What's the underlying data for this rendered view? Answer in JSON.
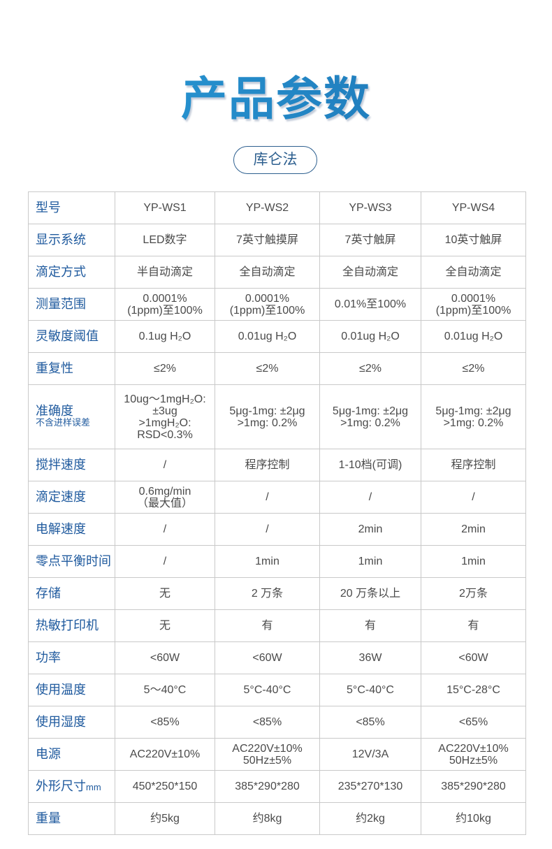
{
  "title": "产品参数",
  "method": "库仑法",
  "colors": {
    "accent": "#1f5a9e",
    "title_gradient": [
      "#2aa0dc",
      "#1c6fb0"
    ],
    "border": "#c9c9c9"
  },
  "rows": [
    {
      "label": "型号",
      "values": [
        "YP-WS1",
        "YP-WS2",
        "YP-WS3",
        "YP-WS4"
      ]
    },
    {
      "label": "显示系统",
      "values": [
        "LED数字",
        "7英寸触摸屏",
        "7英寸触屏",
        "10英寸触屏"
      ]
    },
    {
      "label": "滴定方式",
      "values": [
        "半自动滴定",
        "全自动滴定",
        "全自动滴定",
        "全自动滴定"
      ]
    },
    {
      "label": "测量范围",
      "values": [
        "0.0001%\n(1ppm)至100%",
        "0.0001%\n(1ppm)至100%",
        "0.01%至100%",
        "0.0001%\n(1ppm)至100%"
      ]
    },
    {
      "label": "灵敏度阈值",
      "values": [
        "0.1ug H₂O",
        "0.01ug H₂O",
        "0.01ug H₂O",
        "0.01ug H₂O"
      ]
    },
    {
      "label": "重复性",
      "values": [
        "≤2%",
        "≤2%",
        "≤2%",
        "≤2%"
      ]
    },
    {
      "label": "准确度",
      "sublabel": "不含进样误差",
      "values": [
        "10ug～1mgH₂O:\n±3ug\n>1mgH₂O:\nRSD<0.3%",
        "5μg-1mg: ±2μg\n>1mg: 0.2%",
        "5μg-1mg: ±2μg\n>1mg: 0.2%",
        "5μg-1mg: ±2μg\n>1mg: 0.2%"
      ]
    },
    {
      "label": "搅拌速度",
      "values": [
        "/",
        "程序控制",
        "1-10档(可调)",
        "程序控制"
      ]
    },
    {
      "label": "滴定速度",
      "values": [
        "0.6mg/min\n（最大值）",
        "/",
        "/",
        "/"
      ]
    },
    {
      "label": "电解速度",
      "values": [
        "/",
        "/",
        "2min",
        "2min"
      ]
    },
    {
      "label": "零点平衡时间",
      "values": [
        "/",
        "1min",
        "1min",
        "1min"
      ]
    },
    {
      "label": "存储",
      "values": [
        "无",
        "2 万条",
        "20 万条以上",
        "2万条"
      ]
    },
    {
      "label": "热敏打印机",
      "values": [
        "无",
        "有",
        "有",
        "有"
      ]
    },
    {
      "label": "功率",
      "values": [
        "<60W",
        "<60W",
        "36W",
        "<60W"
      ]
    },
    {
      "label": "使用温度",
      "values": [
        "5～40°C",
        "5°C-40°C",
        "5°C-40°C",
        "15°C-28°C"
      ]
    },
    {
      "label": "使用湿度",
      "values": [
        "<85%",
        "<85%",
        "<85%",
        "<65%"
      ]
    },
    {
      "label": "电源",
      "values": [
        "AC220V±10%",
        "AC220V±10%\n50Hz±5%",
        "12V/3A",
        "AC220V±10%\n50Hz±5%"
      ]
    },
    {
      "label": "外形尺寸",
      "unit": "mm",
      "values": [
        "450*250*150",
        "385*290*280",
        "235*270*130",
        "385*290*280"
      ]
    },
    {
      "label": "重量",
      "values": [
        "约5kg",
        "约8kg",
        "约2kg",
        "约10kg"
      ]
    }
  ]
}
